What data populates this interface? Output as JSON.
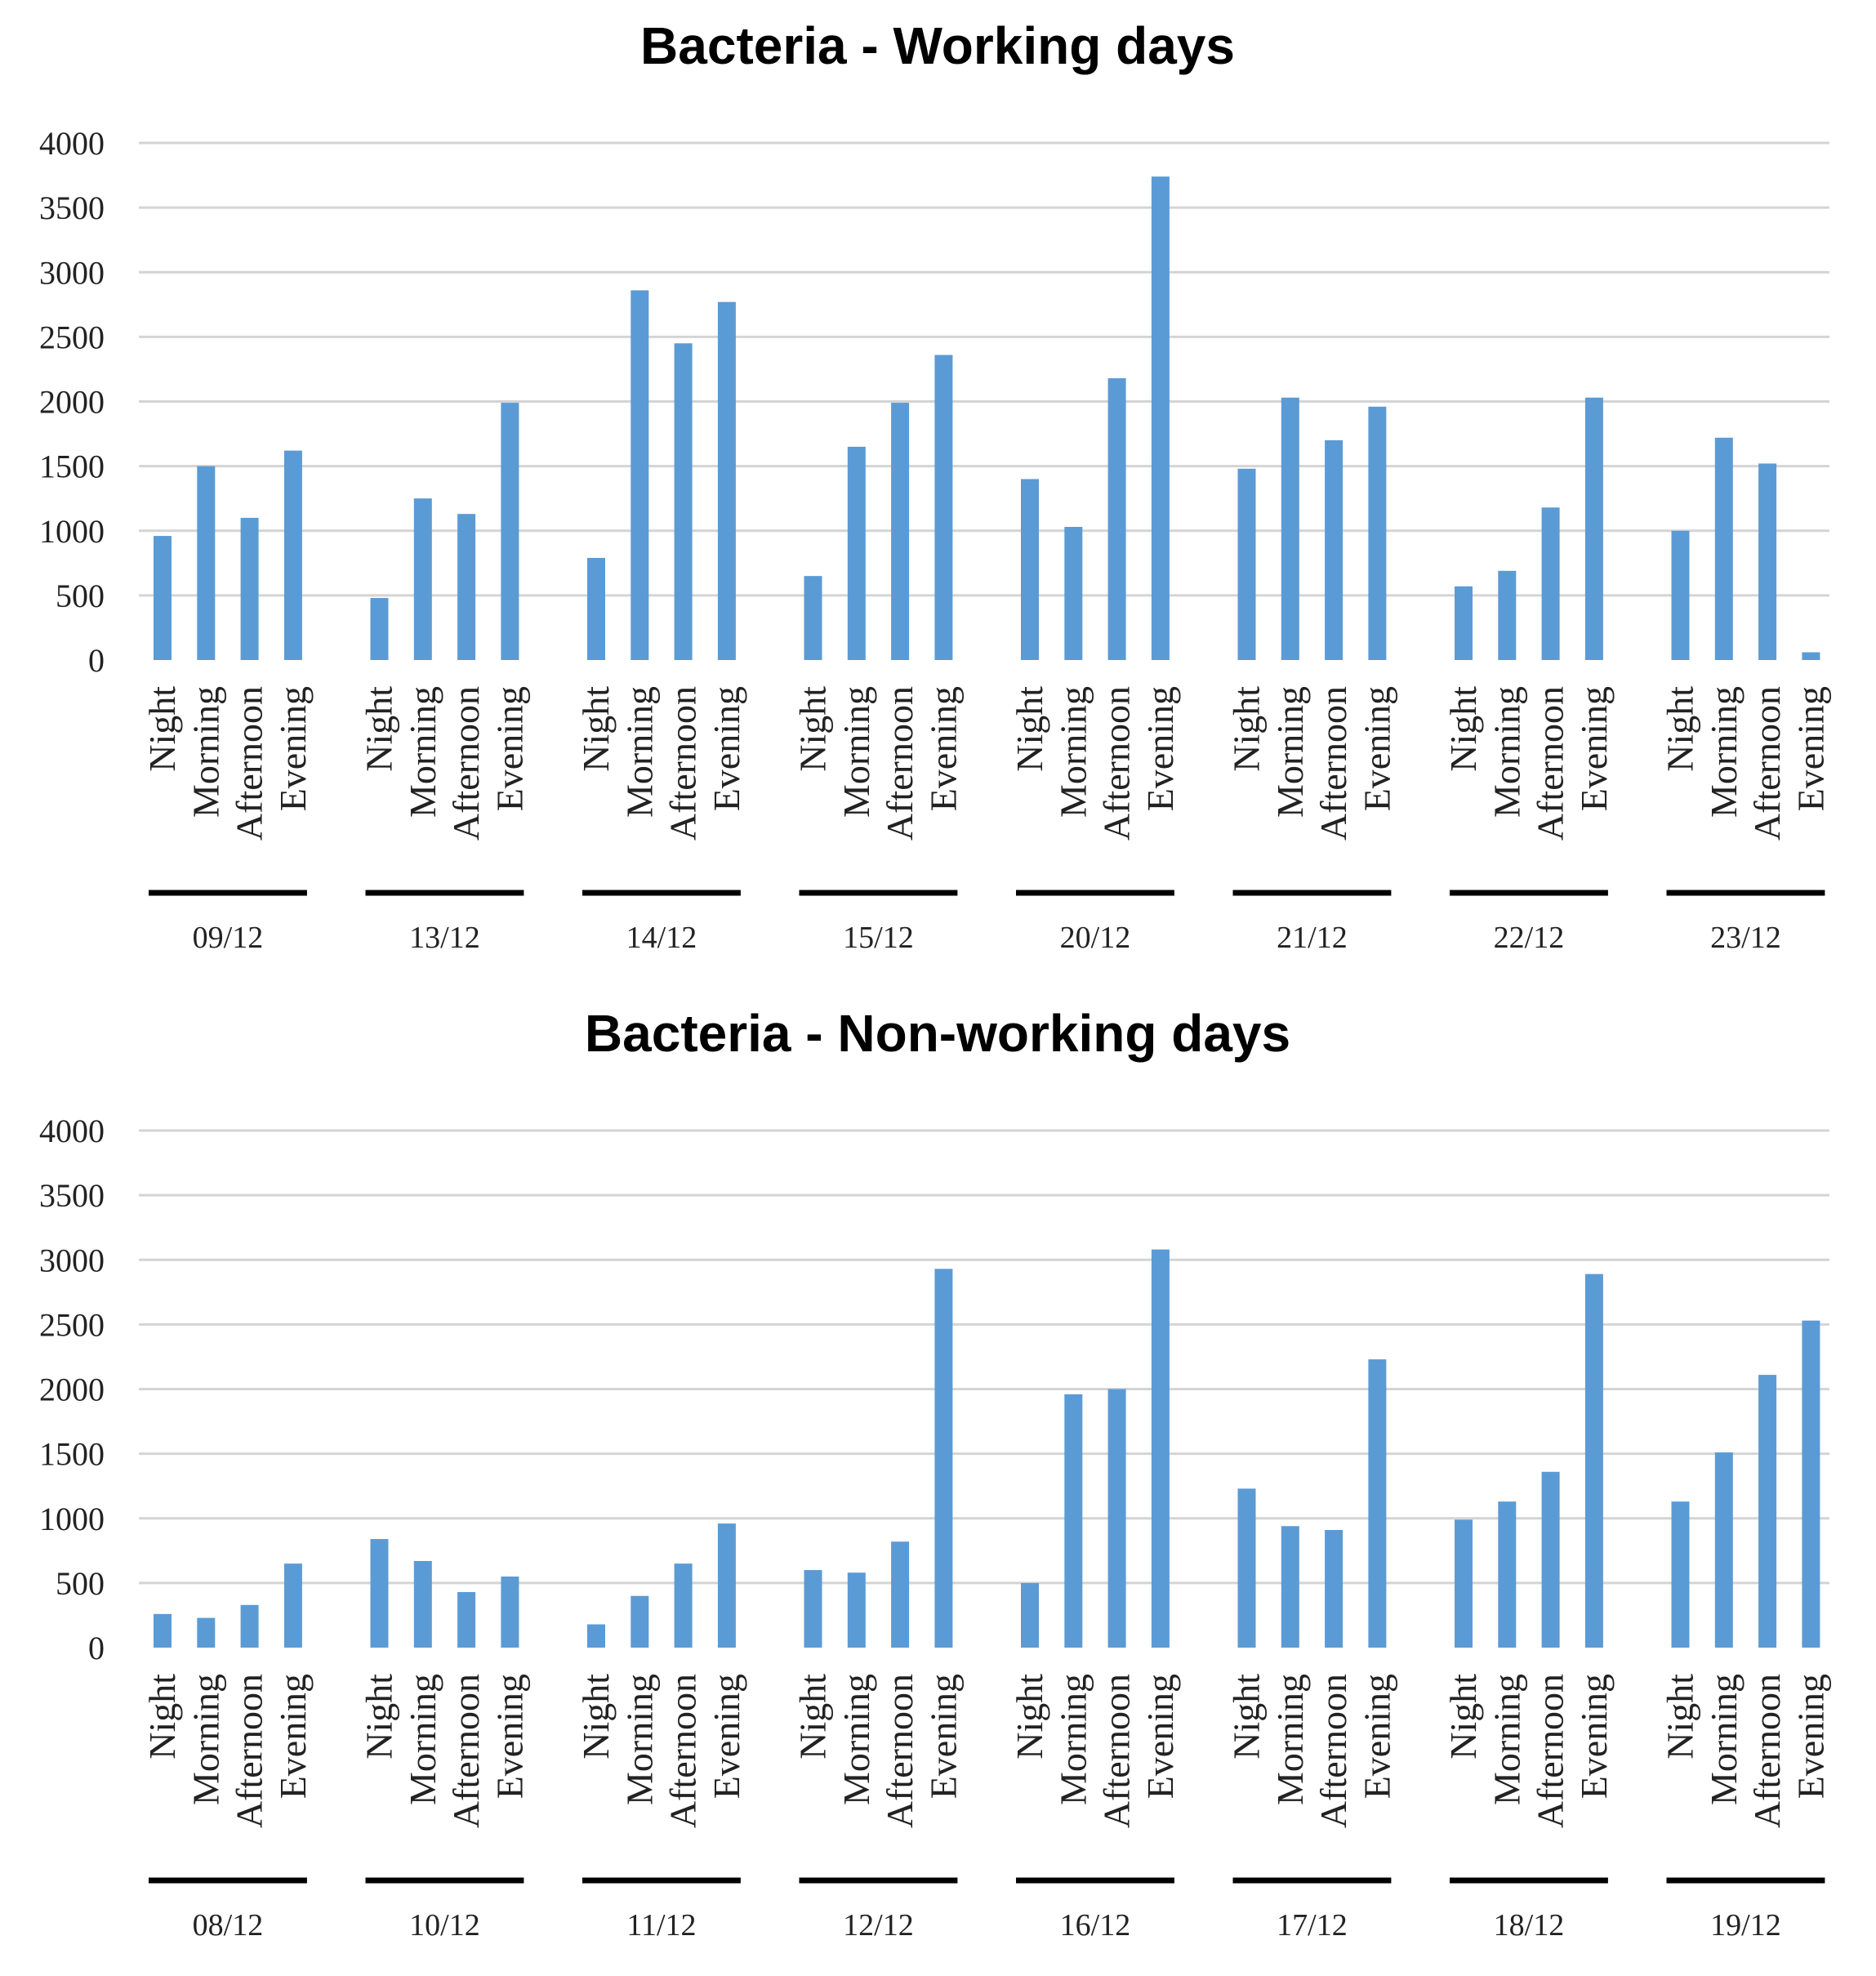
{
  "colors": {
    "bar": "#5b9bd5",
    "grid": "#d4d4d4",
    "group_line": "#000000"
  },
  "chart_data": [
    {
      "type": "bar",
      "title": "Bacteria - Working days",
      "xlabel": "",
      "ylabel": "",
      "ylim": [
        0,
        4000
      ],
      "yticks": [
        0,
        500,
        1000,
        1500,
        2000,
        2500,
        3000,
        3500,
        4000
      ],
      "categories": [
        "Night",
        "Morning",
        "Afternoon",
        "Evening"
      ],
      "groups": [
        {
          "label": "09/12",
          "values": [
            960,
            1500,
            1100,
            1620
          ]
        },
        {
          "label": "13/12",
          "values": [
            480,
            1250,
            1130,
            1990
          ]
        },
        {
          "label": "14/12",
          "values": [
            790,
            2860,
            2450,
            2770
          ]
        },
        {
          "label": "15/12",
          "values": [
            650,
            1650,
            1990,
            2360
          ]
        },
        {
          "label": "20/12",
          "values": [
            1400,
            1030,
            2180,
            3740
          ]
        },
        {
          "label": "21/12",
          "values": [
            1480,
            2030,
            1700,
            1960
          ]
        },
        {
          "label": "22/12",
          "values": [
            570,
            690,
            1180,
            2030
          ]
        },
        {
          "label": "23/12",
          "values": [
            1000,
            1720,
            1520,
            60
          ]
        }
      ]
    },
    {
      "type": "bar",
      "title": "Bacteria - Non-working days",
      "xlabel": "",
      "ylabel": "",
      "ylim": [
        0,
        4000
      ],
      "yticks": [
        0,
        500,
        1000,
        1500,
        2000,
        2500,
        3000,
        3500,
        4000
      ],
      "categories": [
        "Night",
        "Morning",
        "Afternoon",
        "Evening"
      ],
      "groups": [
        {
          "label": "08/12",
          "values": [
            260,
            230,
            330,
            650
          ]
        },
        {
          "label": "10/12",
          "values": [
            840,
            670,
            430,
            550
          ]
        },
        {
          "label": "11/12",
          "values": [
            180,
            400,
            650,
            960
          ]
        },
        {
          "label": "12/12",
          "values": [
            600,
            580,
            820,
            2930
          ]
        },
        {
          "label": "16/12",
          "values": [
            500,
            1960,
            2000,
            3080
          ]
        },
        {
          "label": "17/12",
          "values": [
            1230,
            940,
            910,
            2230
          ]
        },
        {
          "label": "18/12",
          "values": [
            990,
            1130,
            1360,
            2890
          ]
        },
        {
          "label": "19/12",
          "values": [
            1130,
            1510,
            2110,
            2530
          ]
        }
      ]
    }
  ]
}
